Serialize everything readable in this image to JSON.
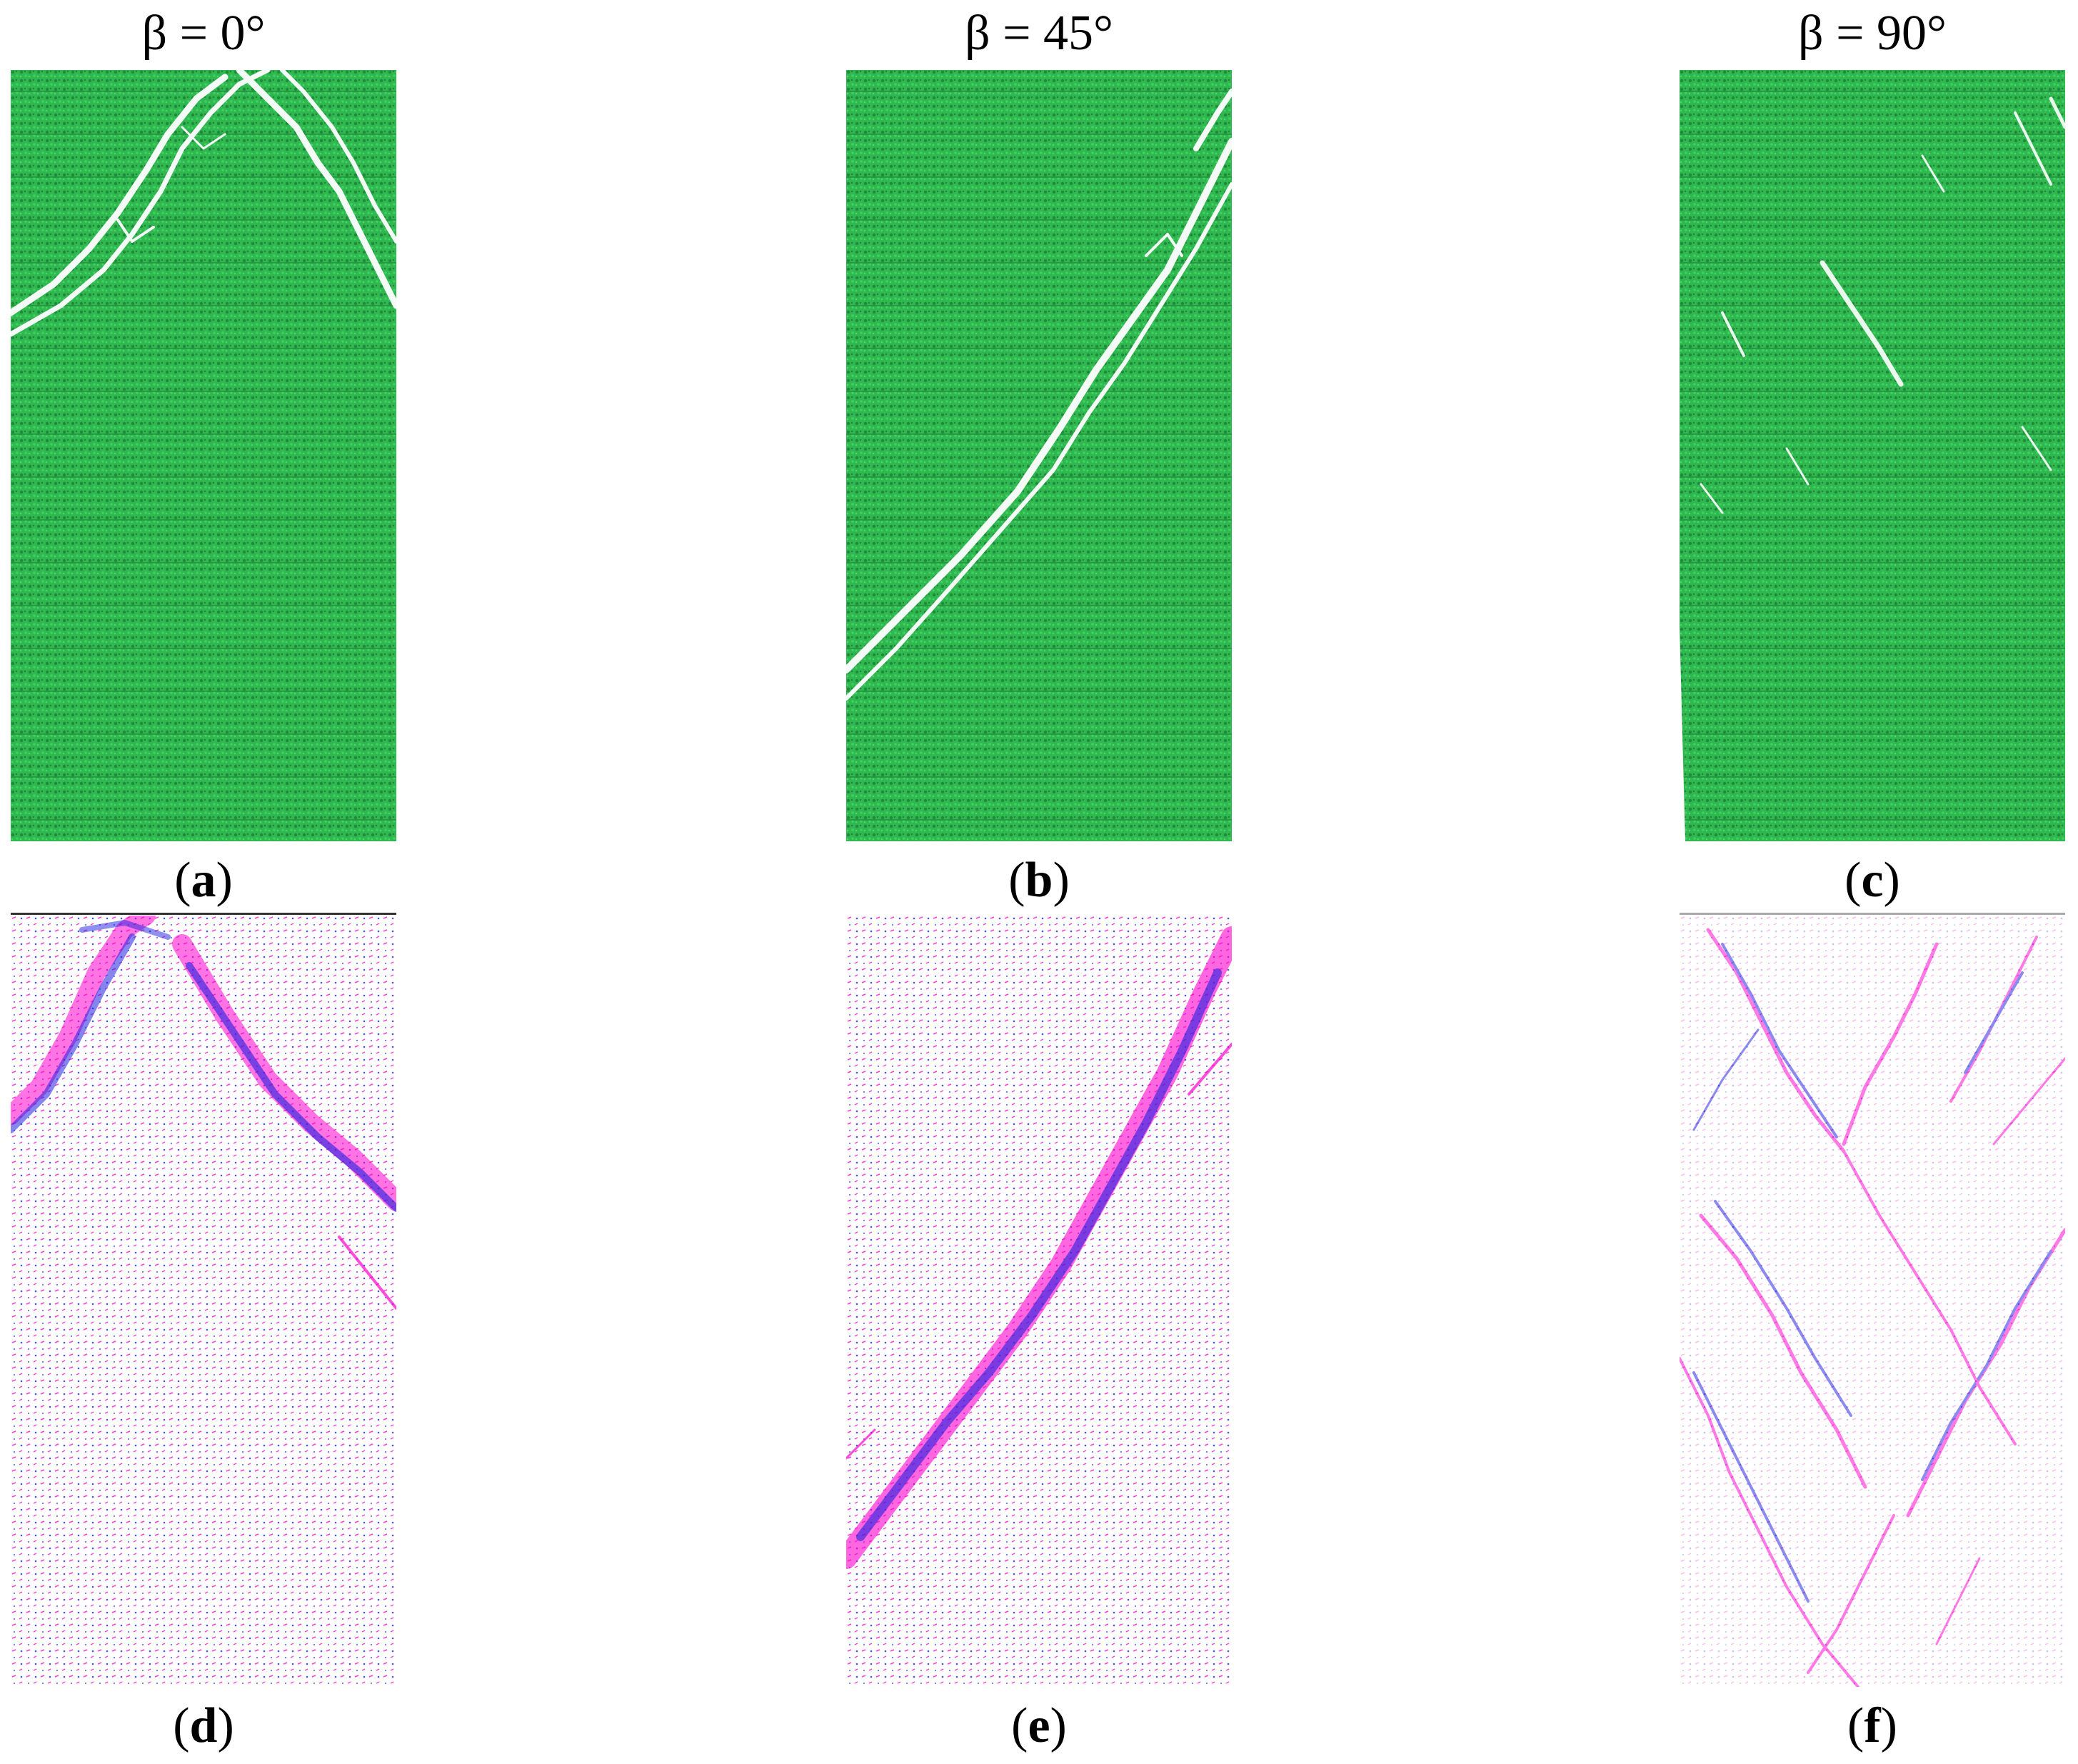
{
  "figure": {
    "columns": [
      {
        "angle_label": "β = 0°",
        "top_panel": {
          "open": "(",
          "letter": "a",
          "close": ")"
        },
        "bottom_panel": {
          "open": "(",
          "letter": "d",
          "close": ")"
        }
      },
      {
        "angle_label": "β = 45°",
        "top_panel": {
          "open": "(",
          "letter": "b",
          "close": ")"
        },
        "bottom_panel": {
          "open": "(",
          "letter": "e",
          "close": ")"
        }
      },
      {
        "angle_label": "β = 90°",
        "top_panel": {
          "open": "(",
          "letter": "c",
          "close": ")"
        },
        "bottom_panel": {
          "open": "(",
          "letter": "f",
          "close": ")"
        }
      }
    ],
    "colors": {
      "particle_green": "#2fb850",
      "particle_green_dark": "#1f8a3a",
      "crack_white": "#ffffff",
      "tension_crack_magenta": "#ff00cc",
      "shear_crack_blue": "#2020e0"
    }
  }
}
